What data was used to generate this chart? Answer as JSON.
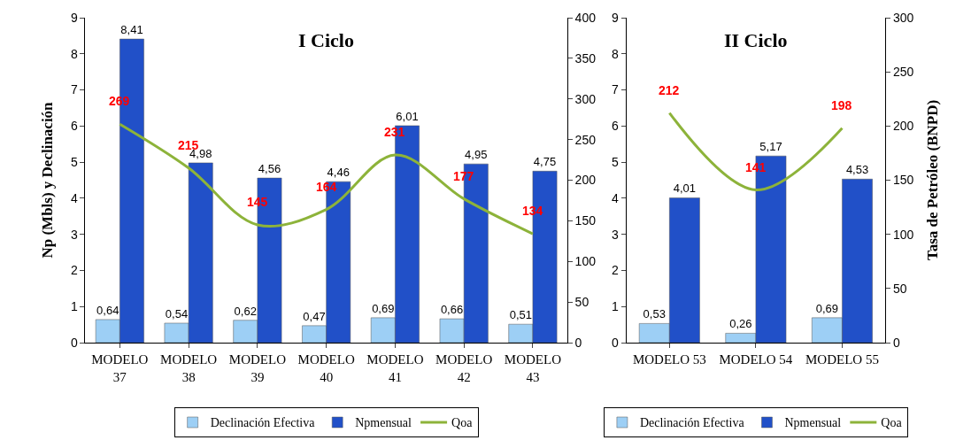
{
  "chart_data": [
    {
      "type": "bar",
      "title": "I Ciclo",
      "ylabel": "Np (Mbls) y Declinación",
      "categories": [
        "MODELO\n37",
        "MODELO\n38",
        "MODELO\n39",
        "MODELO\n40",
        "MODELO\n41",
        "MODELO\n42",
        "MODELO\n43"
      ],
      "series": [
        {
          "name": "Declinación Efectiva",
          "color": "#9dcff5",
          "values": [
            0.64,
            0.54,
            0.62,
            0.47,
            0.69,
            0.66,
            0.51
          ],
          "value_labels": [
            "0,64",
            "0,54",
            "0,62",
            "0,47",
            "0,69",
            "0,66",
            "0,51"
          ]
        },
        {
          "name": "Npmensual",
          "color": "#2150c8",
          "values": [
            8.41,
            4.98,
            4.56,
            4.46,
            6.01,
            4.95,
            4.75
          ],
          "value_labels": [
            "8,41",
            "4,98",
            "4,56",
            "4,46",
            "6,01",
            "4,95",
            "4,75"
          ]
        },
        {
          "name": "Qoa",
          "type": "line",
          "axis": "y2",
          "color": "#8db33a",
          "values": [
            269,
            215,
            145,
            164,
            231,
            177,
            134
          ],
          "value_labels": [
            "269",
            "215",
            "145",
            "164",
            "231",
            "177",
            "134"
          ]
        }
      ],
      "ylim": [
        0,
        9
      ],
      "yticks": [
        0,
        1,
        2,
        3,
        4,
        5,
        6,
        7,
        8,
        9
      ],
      "y2lim": [
        0,
        400
      ],
      "y2ticks": [
        0,
        50,
        100,
        150,
        200,
        250,
        300,
        350,
        400
      ],
      "legend": "bottom",
      "marker": "none"
    },
    {
      "type": "bar",
      "title": "II Ciclo",
      "y2label": "Tasa de Petróleo (BNPD)",
      "categories": [
        "MODELO 53",
        "MODELO 54",
        "MODELO 55"
      ],
      "series": [
        {
          "name": "Declinación Efectiva",
          "color": "#9dcff5",
          "values": [
            0.53,
            0.26,
            0.69
          ],
          "value_labels": [
            "0,53",
            "0,26",
            "0,69"
          ]
        },
        {
          "name": "Npmensual",
          "color": "#2150c8",
          "values": [
            4.01,
            5.17,
            4.53
          ],
          "value_labels": [
            "4,01",
            "5,17",
            "4,53"
          ]
        },
        {
          "name": "Qoa",
          "type": "line",
          "axis": "y2",
          "color": "#8db33a",
          "values": [
            212,
            141,
            198
          ],
          "value_labels": [
            "212",
            "141",
            "198"
          ]
        }
      ],
      "ylim": [
        0,
        9
      ],
      "yticks": [
        0,
        1,
        2,
        3,
        4,
        5,
        6,
        7,
        8,
        9
      ],
      "y2lim": [
        0,
        300
      ],
      "y2ticks": [
        0,
        50,
        100,
        150,
        200,
        250,
        300
      ],
      "legend": "bottom",
      "marker": "none"
    }
  ]
}
